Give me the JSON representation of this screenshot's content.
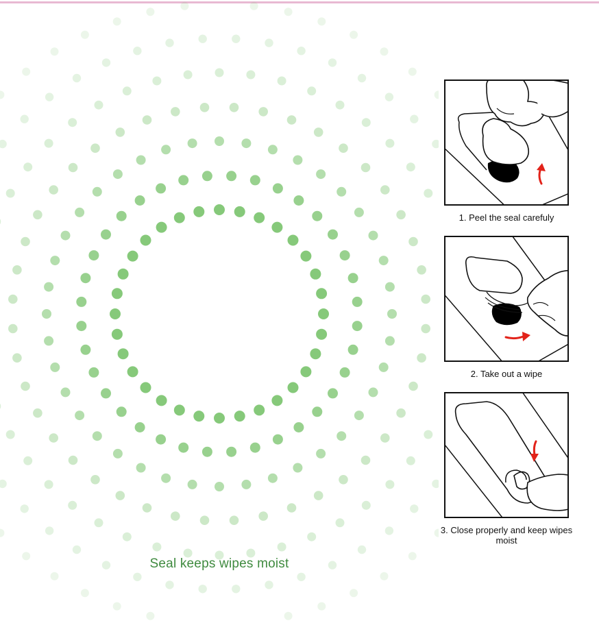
{
  "caption": "Seal keeps wipes moist",
  "colors": {
    "dot_inner": "#86c97a",
    "dot_outer": "#d3ecd0",
    "accent_top_line": "#e8b9d2",
    "arrow": "#e2231a"
  },
  "steps": [
    {
      "label": "1. Peel the seal carefuly",
      "icon": "peel-seal-illustration"
    },
    {
      "label": "2. Take out a wipe",
      "icon": "take-wipe-illustration"
    },
    {
      "label": "3. Close properly and keep wipes moist",
      "icon": "close-seal-illustration"
    }
  ]
}
